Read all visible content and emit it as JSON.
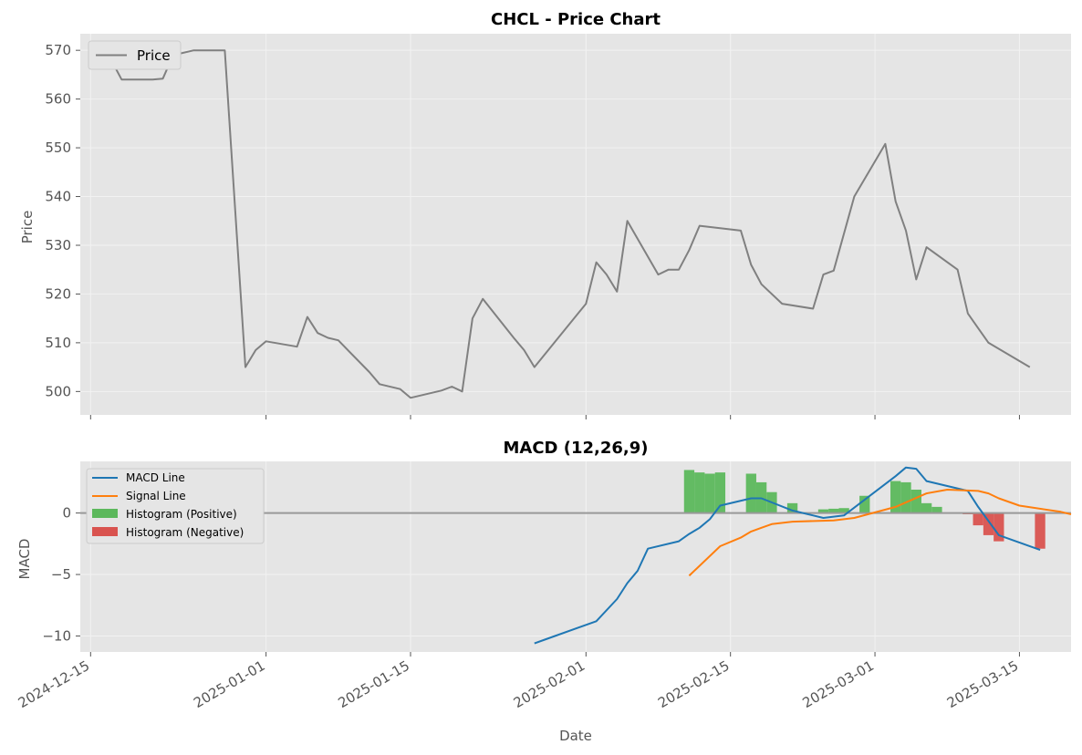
{
  "chart_data": [
    {
      "type": "line",
      "title": "CHCL - Price Chart",
      "ylabel": "Price",
      "ylim": [
        495.2,
        573.4
      ],
      "yticks": [
        500,
        510,
        520,
        530,
        540,
        550,
        560,
        570
      ],
      "grid": true,
      "legend_position": "top-left",
      "series": [
        {
          "name": "Price",
          "color": "#808080",
          "points": [
            [
              "2024-12-15",
              569.5
            ],
            [
              "2024-12-17",
              568.0
            ],
            [
              "2024-12-18",
              564.0
            ],
            [
              "2024-12-21",
              564.0
            ],
            [
              "2024-12-22",
              564.2
            ],
            [
              "2024-12-23",
              569.0
            ],
            [
              "2024-12-25",
              570.0
            ],
            [
              "2024-12-28",
              570.0
            ],
            [
              "2024-12-30",
              505.0
            ],
            [
              "2024-12-31",
              508.5
            ],
            [
              "2025-01-01",
              510.3
            ],
            [
              "2025-01-04",
              509.2
            ],
            [
              "2025-01-05",
              515.3
            ],
            [
              "2025-01-06",
              512.0
            ],
            [
              "2025-01-07",
              511.0
            ],
            [
              "2025-01-08",
              510.5
            ],
            [
              "2025-01-11",
              504.0
            ],
            [
              "2025-01-12",
              501.5
            ],
            [
              "2025-01-14",
              500.5
            ],
            [
              "2025-01-15",
              498.7
            ],
            [
              "2025-01-18",
              500.2
            ],
            [
              "2025-01-19",
              501.0
            ],
            [
              "2025-01-20",
              500.0
            ],
            [
              "2025-01-21",
              515.0
            ],
            [
              "2025-01-22",
              519.0
            ],
            [
              "2025-01-25",
              511.0
            ],
            [
              "2025-01-26",
              508.5
            ],
            [
              "2025-01-27",
              505.0
            ],
            [
              "2025-02-01",
              518.0
            ],
            [
              "2025-02-02",
              526.5
            ],
            [
              "2025-02-03",
              524.0
            ],
            [
              "2025-02-04",
              520.5
            ],
            [
              "2025-02-05",
              535.0
            ],
            [
              "2025-02-08",
              524.0
            ],
            [
              "2025-02-09",
              525.0
            ],
            [
              "2025-02-10",
              525.0
            ],
            [
              "2025-02-11",
              529.0
            ],
            [
              "2025-02-12",
              534.0
            ],
            [
              "2025-02-16",
              533.0
            ],
            [
              "2025-02-17",
              526.0
            ],
            [
              "2025-02-18",
              522.0
            ],
            [
              "2025-02-20",
              518.0
            ],
            [
              "2025-02-23",
              517.0
            ],
            [
              "2025-02-24",
              524.0
            ],
            [
              "2025-02-25",
              524.8
            ],
            [
              "2025-02-27",
              540.0
            ],
            [
              "2025-03-02",
              550.8
            ],
            [
              "2025-03-03",
              539.0
            ],
            [
              "2025-03-04",
              533.0
            ],
            [
              "2025-03-05",
              523.0
            ],
            [
              "2025-03-06",
              529.6
            ],
            [
              "2025-03-09",
              525.0
            ],
            [
              "2025-03-10",
              516.0
            ],
            [
              "2025-03-11",
              513.0
            ],
            [
              "2025-03-12",
              510.0
            ],
            [
              "2025-03-16",
              505.0
            ]
          ]
        }
      ]
    },
    {
      "type": "line",
      "title": "MACD (12,26,9)",
      "xlabel": "Date",
      "ylabel": "MACD",
      "ylim": [
        -11.3,
        4.2
      ],
      "yticks": [
        -10,
        -5,
        0
      ],
      "xlim": [
        "2024-12-14",
        "2025-03-20"
      ],
      "xticks": [
        "2024-12-15",
        "2025-01-01",
        "2025-01-15",
        "2025-02-01",
        "2025-02-15",
        "2025-03-01",
        "2025-03-15"
      ],
      "grid": true,
      "zero_line": true,
      "legend_position": "top-left",
      "series": [
        {
          "name": "MACD Line",
          "color": "#1f77b4",
          "points": [
            [
              "2025-01-27",
              -10.6
            ],
            [
              "2025-01-28",
              -10.3
            ],
            [
              "2025-02-02",
              -8.8
            ],
            [
              "2025-02-04",
              -7.0
            ],
            [
              "2025-02-05",
              -5.7
            ],
            [
              "2025-02-06",
              -4.7
            ],
            [
              "2025-02-07",
              -2.9
            ],
            [
              "2025-02-10",
              -2.3
            ],
            [
              "2025-02-11",
              -1.7
            ],
            [
              "2025-02-12",
              -1.2
            ],
            [
              "2025-02-13",
              -0.5
            ],
            [
              "2025-02-14",
              0.6
            ],
            [
              "2025-02-17",
              1.2
            ],
            [
              "2025-02-18",
              1.2
            ],
            [
              "2025-02-21",
              0.2
            ],
            [
              "2025-02-24",
              -0.4
            ],
            [
              "2025-02-26",
              -0.2
            ],
            [
              "2025-03-03",
              3.0
            ],
            [
              "2025-03-04",
              3.7
            ],
            [
              "2025-03-05",
              3.6
            ],
            [
              "2025-03-06",
              2.6
            ],
            [
              "2025-03-10",
              1.8
            ],
            [
              "2025-03-11",
              0.5
            ],
            [
              "2025-03-13",
              -1.8
            ],
            [
              "2025-03-17",
              -3.0
            ]
          ]
        },
        {
          "name": "Signal Line",
          "color": "#ff7f0e",
          "points": [
            [
              "2025-02-11",
              -5.1
            ],
            [
              "2025-02-14",
              -2.7
            ],
            [
              "2025-02-16",
              -2.0
            ],
            [
              "2025-02-17",
              -1.5
            ],
            [
              "2025-02-18",
              -1.2
            ],
            [
              "2025-02-19",
              -0.9
            ],
            [
              "2025-02-21",
              -0.7
            ],
            [
              "2025-02-25",
              -0.6
            ],
            [
              "2025-02-27",
              -0.4
            ],
            [
              "2025-03-03",
              0.5
            ],
            [
              "2025-03-06",
              1.6
            ],
            [
              "2025-03-08",
              1.9
            ],
            [
              "2025-03-11",
              1.8
            ],
            [
              "2025-03-12",
              1.6
            ],
            [
              "2025-03-13",
              1.2
            ],
            [
              "2025-03-15",
              0.6
            ],
            [
              "2025-03-19",
              0.1
            ],
            [
              "2025-03-20",
              -0.1
            ]
          ]
        }
      ],
      "bars": [
        {
          "name": "Histogram (Positive)",
          "color": "#5cb85c",
          "points": [
            [
              "2025-02-11",
              3.5
            ],
            [
              "2025-02-12",
              3.3
            ],
            [
              "2025-02-13",
              3.2
            ],
            [
              "2025-02-14",
              3.3
            ],
            [
              "2025-02-17",
              3.2
            ],
            [
              "2025-02-18",
              2.5
            ],
            [
              "2025-02-19",
              1.7
            ],
            [
              "2025-02-21",
              0.8
            ],
            [
              "2025-02-24",
              0.3
            ],
            [
              "2025-02-25",
              0.35
            ],
            [
              "2025-02-26",
              0.4
            ],
            [
              "2025-02-28",
              1.4
            ],
            [
              "2025-03-03",
              2.6
            ],
            [
              "2025-03-04",
              2.5
            ],
            [
              "2025-03-05",
              1.9
            ],
            [
              "2025-03-06",
              0.8
            ],
            [
              "2025-03-07",
              0.5
            ]
          ]
        },
        {
          "name": "Histogram (Negative)",
          "color": "#d9534f",
          "points": [
            [
              "2025-03-10",
              -0.1
            ],
            [
              "2025-03-11",
              -1.0
            ],
            [
              "2025-03-12",
              -1.8
            ],
            [
              "2025-03-13",
              -2.3
            ],
            [
              "2025-03-17",
              -2.9
            ]
          ]
        }
      ]
    }
  ]
}
